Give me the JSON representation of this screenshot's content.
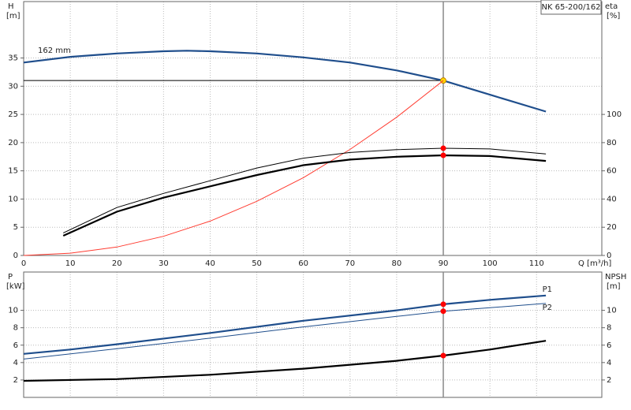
{
  "chart_data": [
    {
      "type": "line",
      "title": "NK 65-200/162",
      "ylabel": "H",
      "yunit": "[m]",
      "y2label": "eta",
      "y2unit": "[%]",
      "xlabel": "Q [m³/h]",
      "xlim": [
        0,
        124
      ],
      "xticks": [
        0,
        10,
        20,
        30,
        40,
        50,
        60,
        70,
        80,
        90,
        100,
        110
      ],
      "xtick_labels": true,
      "ylim": [
        0,
        45
      ],
      "yticks": [
        0,
        5,
        10,
        15,
        20,
        25,
        30,
        35
      ],
      "y2lim": [
        0,
        180
      ],
      "y2ticks": [
        0,
        20,
        40,
        60,
        80,
        100
      ],
      "grid": true,
      "marker_x": 90,
      "series": [
        {
          "name": "162 mm",
          "color": "#1f4e8c",
          "style": "thick",
          "marker": "#ffd700",
          "x": [
            0,
            10,
            20,
            30,
            35,
            40,
            50,
            60,
            70,
            80,
            90,
            100,
            112
          ],
          "values": [
            34.2,
            35.2,
            35.8,
            36.2,
            36.3,
            36.2,
            35.8,
            35.1,
            34.2,
            32.8,
            31.0,
            28.5,
            25.5
          ]
        },
        {
          "color": "#ff3b30",
          "style": "thin",
          "x": [
            0,
            10,
            20,
            30,
            40,
            50,
            60,
            70,
            80,
            90
          ],
          "values": [
            0,
            0.4,
            1.5,
            3.4,
            6.1,
            9.6,
            13.8,
            18.8,
            24.5,
            31.0
          ]
        },
        {
          "color": "#000000",
          "style": "thin",
          "axis": "y2",
          "marker": "#ff0000",
          "x": [
            8.5,
            20,
            30,
            40,
            50,
            60,
            70,
            80,
            90,
            100,
            112
          ],
          "values": [
            16,
            34,
            44,
            53,
            62,
            69,
            73,
            75,
            76,
            75.5,
            72
          ]
        },
        {
          "color": "#000000",
          "style": "thick",
          "axis": "y2",
          "marker": "#ff0000",
          "x": [
            8.5,
            20,
            30,
            40,
            50,
            60,
            70,
            80,
            90,
            100,
            112
          ],
          "values": [
            14,
            31,
            41,
            49,
            57,
            64,
            68,
            70,
            71,
            70.5,
            67
          ]
        }
      ]
    },
    {
      "type": "line",
      "ylabel": "P",
      "yunit": "[kW]",
      "y2label": "NPSH",
      "y2unit": "[m]",
      "xlim": [
        0,
        124
      ],
      "xticks": [
        0,
        10,
        20,
        30,
        40,
        50,
        60,
        70,
        80,
        90,
        100,
        110
      ],
      "xtick_labels": false,
      "ylim": [
        0,
        14.4
      ],
      "yticks": [
        2,
        4,
        6,
        8,
        10
      ],
      "y2lim": [
        0,
        14.4
      ],
      "y2ticks": [
        2,
        4,
        6,
        8,
        10
      ],
      "grid": true,
      "marker_x": 90,
      "series": [
        {
          "name": "P1",
          "color": "#1f4e8c",
          "style": "thick",
          "marker": "#ff0000",
          "x": [
            0,
            10,
            20,
            40,
            60,
            80,
            90,
            100,
            112
          ],
          "values": [
            5.0,
            5.5,
            6.1,
            7.4,
            8.8,
            10.0,
            10.7,
            11.2,
            11.7
          ]
        },
        {
          "name": "P2",
          "color": "#1f4e8c",
          "style": "thin",
          "marker": "#ff0000",
          "x": [
            0,
            20,
            40,
            60,
            80,
            90,
            100,
            112
          ],
          "values": [
            4.4,
            5.6,
            6.8,
            8.1,
            9.3,
            9.9,
            10.3,
            10.8
          ]
        },
        {
          "color": "#000000",
          "style": "thick",
          "axis": "y2",
          "marker": "#ff0000",
          "x": [
            0,
            20,
            40,
            60,
            80,
            90,
            100,
            112
          ],
          "values": [
            1.9,
            2.1,
            2.6,
            3.3,
            4.2,
            4.8,
            5.5,
            6.5
          ]
        }
      ]
    }
  ]
}
